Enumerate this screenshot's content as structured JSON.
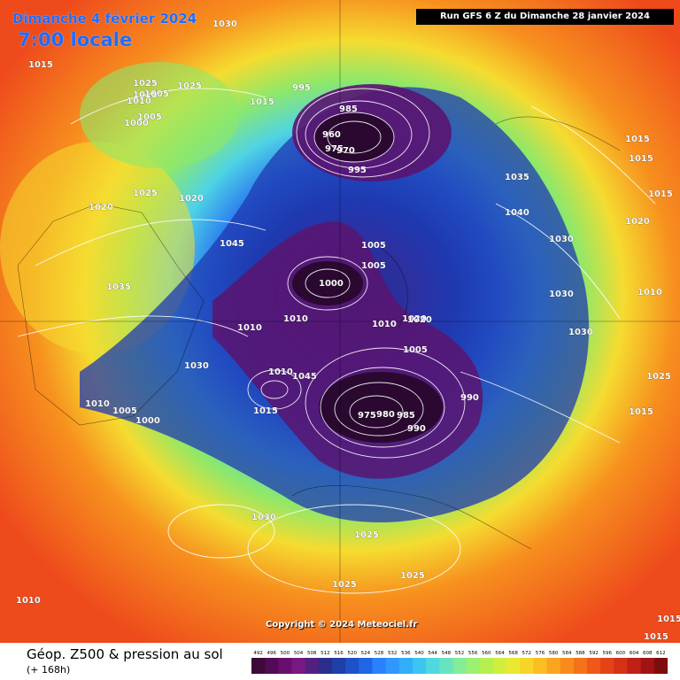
{
  "header": {
    "date": "Dimanche 4 février 2024",
    "local_time": "7:00 locale",
    "run_info": "Run GFS 6 Z du Dimanche 28 janvier 2024"
  },
  "copyright": "Copyright © 2024 Meteociel.fr",
  "legend": {
    "title": "Géop. Z500 & pression au sol",
    "subtitle": "(+ 168h)",
    "scale_values": [
      "492",
      "496",
      "500",
      "504",
      "508",
      "512",
      "516",
      "520",
      "524",
      "528",
      "532",
      "536",
      "540",
      "544",
      "548",
      "552",
      "556",
      "560",
      "564",
      "568",
      "572",
      "576",
      "580",
      "584",
      "588",
      "592",
      "596",
      "600",
      "604",
      "608",
      "612"
    ],
    "scale_colors": [
      "#3d0a3a",
      "#520b55",
      "#6a0d70",
      "#7a1883",
      "#53207f",
      "#2b2d8c",
      "#1f3fa8",
      "#1e52c8",
      "#1f66e6",
      "#2a80ff",
      "#2f97ff",
      "#32aef8",
      "#3bc5f0",
      "#4fd8df",
      "#66e4c0",
      "#82ec98",
      "#9cf070",
      "#b6f050",
      "#d2ee3c",
      "#ebe830",
      "#f7d428",
      "#fbbd22",
      "#fba51e",
      "#f98b1c",
      "#f5711a",
      "#ef5818",
      "#e54216",
      "#d63016",
      "#c02016",
      "#a01414",
      "#7e0c0c"
    ]
  },
  "map": {
    "colors": {
      "outer": "#ee4a1c",
      "ring_orange": "#f7901e",
      "ring_yellow": "#f5dc30",
      "ring_green": "#8ee86a",
      "ring_cyan": "#4fd4e4",
      "ring_blue": "#2a7cf0",
      "ring_navy": "#1f3ab0",
      "core_purple": "#5a1470",
      "core_dark": "#2a0830",
      "contour": "#ffffff"
    },
    "pressure_labels": [
      "1030",
      "1015",
      "1025",
      "1015",
      "1005",
      "1010",
      "1005",
      "1000",
      "995",
      "985",
      "960",
      "975",
      "970",
      "995",
      "1025",
      "1015",
      "1035",
      "1040",
      "1030",
      "1015",
      "1015",
      "1015",
      "1020",
      "1025",
      "1020",
      "1005",
      "1000",
      "1005",
      "1010",
      "1010",
      "1030",
      "1045",
      "1045",
      "1010",
      "1015",
      "1035",
      "1020",
      "1010",
      "1005",
      "1000",
      "975",
      "980",
      "985",
      "990",
      "990",
      "1005",
      "1010",
      "1020",
      "1010",
      "1030",
      "1025",
      "1025",
      "1025",
      "1010",
      "1020",
      "1030",
      "1030",
      "1025",
      "1015",
      "1015",
      "1015"
    ]
  }
}
